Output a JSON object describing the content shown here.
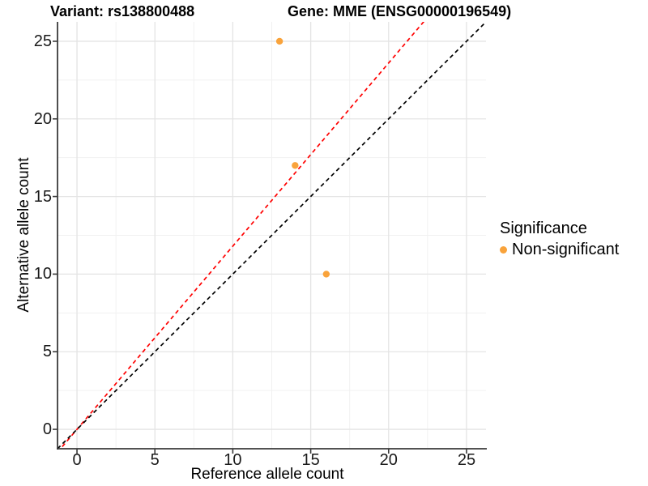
{
  "chart_data": {
    "type": "scatter",
    "title_left": "Variant: rs138800488",
    "title_right": "Gene: MME (ENSG00000196549)",
    "xlabel": "Reference allele count",
    "ylabel": "Alternative allele count",
    "xlim": [
      -1.25,
      26.25
    ],
    "ylim": [
      -1.25,
      26.25
    ],
    "x_ticks": [
      0,
      5,
      10,
      15,
      20,
      25
    ],
    "y_ticks": [
      0,
      5,
      10,
      15,
      20,
      25
    ],
    "x_minor_ticks": [
      2.5,
      7.5,
      12.5,
      17.5,
      22.5
    ],
    "y_minor_ticks": [
      2.5,
      7.5,
      12.5,
      17.5,
      22.5
    ],
    "grid": "major-and-minor",
    "series": [
      {
        "name": "Non-significant",
        "color": "#F9A33B",
        "points": [
          [
            13,
            25
          ],
          [
            14,
            17
          ],
          [
            16,
            10
          ]
        ]
      }
    ],
    "reference_lines": [
      {
        "name": "allelic-ratio-line",
        "color": "#FF0000",
        "dashed": true,
        "slope": 1.18,
        "intercept": 0
      },
      {
        "name": "identity-line",
        "color": "#000000",
        "dashed": true,
        "slope": 1.0,
        "intercept": 0
      }
    ],
    "legend": {
      "title": "Significance",
      "position": "right",
      "items": [
        {
          "label": "Non-significant",
          "color": "#F9A33B"
        }
      ]
    },
    "colors": {
      "grid_major": "#E4E4E4",
      "grid_minor": "#F1F1F1",
      "axis": "#3a3a3a",
      "tick_text": "#1a1a1a"
    }
  }
}
